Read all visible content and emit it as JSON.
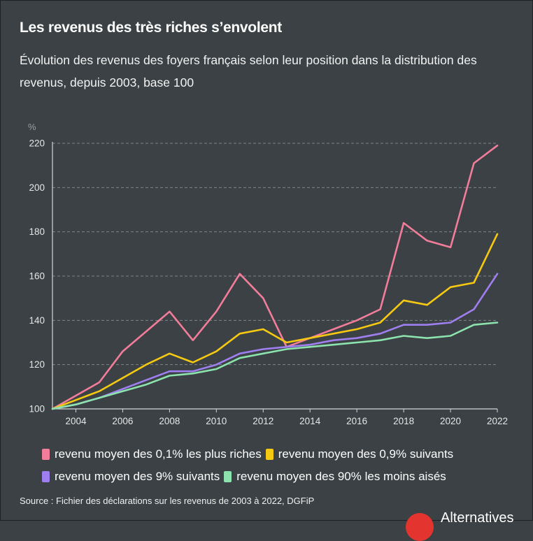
{
  "title": "Les revenus des très riches s’envolent",
  "subtitle": "Évolution des revenus des foyers français selon leur position dans la distribution des revenus, depuis 2003, base 100",
  "source": "Source : Fichier des déclarations sur les revenus de 2003 à 2022, DGFiP",
  "logo": {
    "text": "Alternatives"
  },
  "chart_data": {
    "type": "line",
    "ylabel": "%",
    "ylim": [
      100,
      220
    ],
    "yticks": [
      "100",
      "120",
      "140",
      "160",
      "180",
      "200",
      "220"
    ],
    "xlim": [
      2003,
      2022
    ],
    "xticks": [
      "2004",
      "2006",
      "2008",
      "2010",
      "2012",
      "2014",
      "2016",
      "2018",
      "2020",
      "2022"
    ],
    "grid": true,
    "x": [
      2003,
      2004,
      2005,
      2006,
      2007,
      2008,
      2009,
      2010,
      2011,
      2012,
      2013,
      2014,
      2015,
      2016,
      2017,
      2018,
      2019,
      2020,
      2021,
      2022
    ],
    "series": [
      {
        "name": "revenu moyen des 0,1% les plus riches",
        "color": "#f27d9a",
        "values": [
          100,
          106,
          112,
          126,
          135,
          144,
          131,
          144,
          161,
          150,
          128,
          132,
          136,
          140,
          145,
          184,
          176,
          173,
          211,
          219
        ]
      },
      {
        "name": "revenu moyen des 0,9% suivants",
        "color": "#f5c811",
        "values": [
          100,
          104,
          108,
          114,
          120,
          125,
          121,
          126,
          134,
          136,
          130,
          132,
          134,
          136,
          139,
          149,
          147,
          155,
          157,
          179
        ]
      },
      {
        "name": "revenu moyen des 9% suivants",
        "color": "#9f7ff0",
        "values": [
          100,
          102,
          105,
          109,
          113,
          117,
          117,
          120,
          125,
          127,
          128,
          129,
          131,
          132,
          134,
          138,
          138,
          139,
          145,
          161
        ]
      },
      {
        "name": "revenu moyen des 90% les moins aisés",
        "color": "#8de3ad",
        "values": [
          100,
          102,
          105,
          108,
          111,
          115,
          116,
          118,
          123,
          125,
          127,
          128,
          129,
          130,
          131,
          133,
          132,
          133,
          138,
          139
        ]
      }
    ]
  }
}
